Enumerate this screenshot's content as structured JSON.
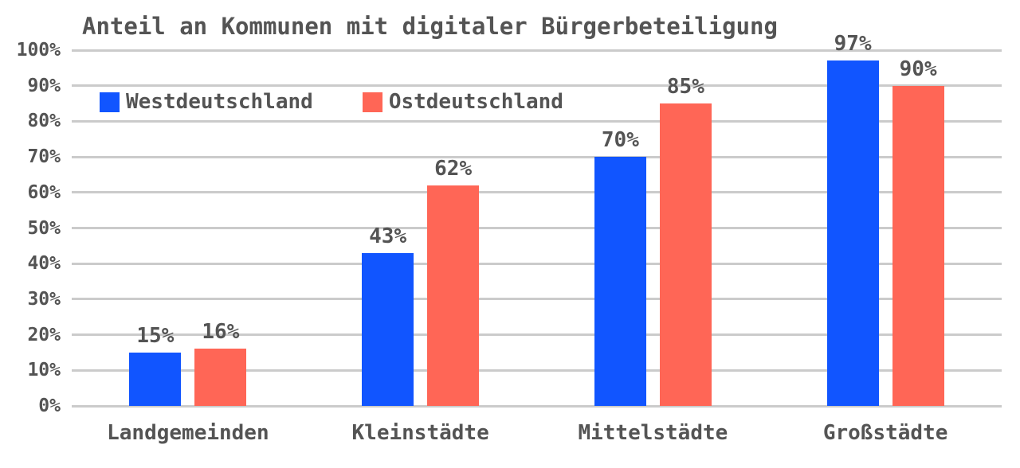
{
  "chart_data": {
    "type": "bar",
    "title": "Anteil an Kommunen mit digitaler Bürgerbeteiligung",
    "categories": [
      "Landgemeinden",
      "Kleinstädte",
      "Mittelstädte",
      "Großstädte"
    ],
    "series": [
      {
        "name": "Westdeutschland",
        "color": "#1155ff",
        "values": [
          15,
          43,
          70,
          97
        ]
      },
      {
        "name": "Ostdeutschland",
        "color": "#ff6656",
        "values": [
          16,
          62,
          85,
          90
        ]
      }
    ],
    "value_label_suffix": "%",
    "ylim": [
      0,
      100
    ],
    "ytick_step": 10,
    "ytick_suffix": "%",
    "ytick_labels": [
      "0%",
      "10%",
      "20%",
      "30%",
      "40%",
      "50%",
      "60%",
      "70%",
      "80%",
      "90%",
      "100%"
    ],
    "grid": true,
    "gridline_color": "#cbcbcb",
    "text_color": "#545454",
    "background_color": "#ffffff",
    "legend_position": "top-left-inside",
    "xlabel": "",
    "ylabel": ""
  }
}
